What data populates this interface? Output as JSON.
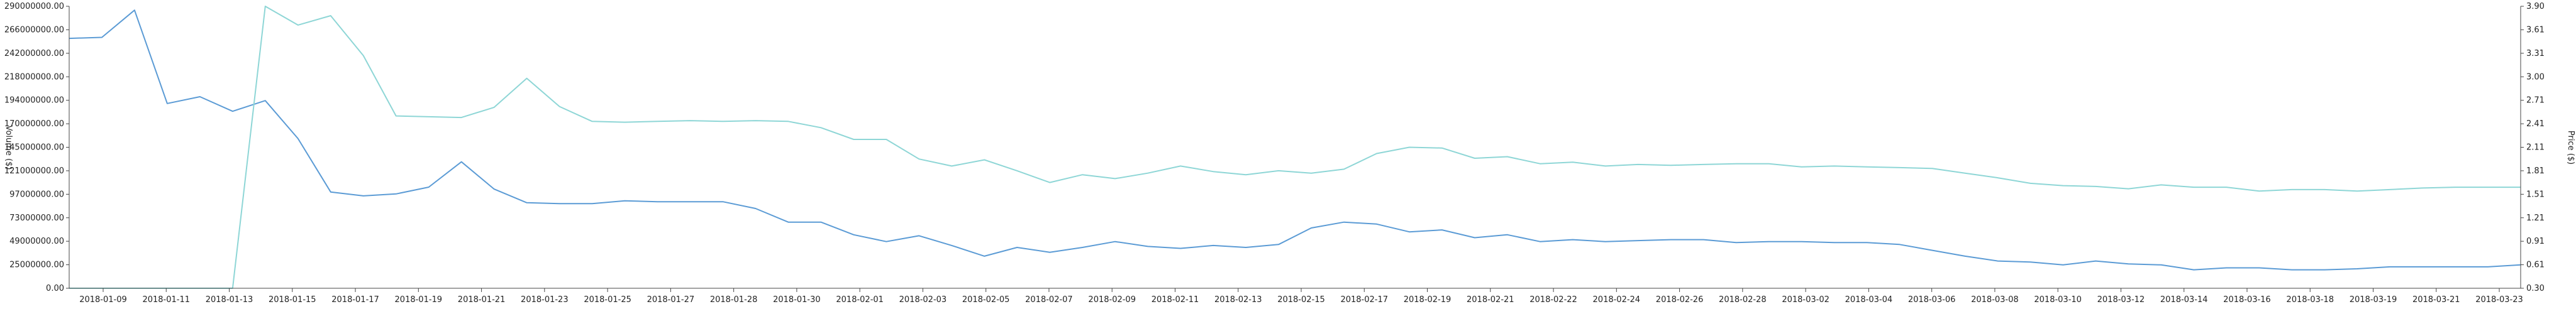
{
  "chart_data": {
    "type": "line",
    "x_ticks": [
      "2018-01-09",
      "2018-01-11",
      "2018-01-13",
      "2018-01-15",
      "2018-01-17",
      "2018-01-19",
      "2018-01-21",
      "2018-01-23",
      "2018-01-25",
      "2018-01-27",
      "2018-01-28",
      "2018-01-30",
      "2018-02-01",
      "2018-02-03",
      "2018-02-05",
      "2018-02-07",
      "2018-02-09",
      "2018-02-11",
      "2018-02-13",
      "2018-02-15",
      "2018-02-17",
      "2018-02-19",
      "2018-02-21",
      "2018-02-22",
      "2018-02-24",
      "2018-02-26",
      "2018-02-28",
      "2018-03-02",
      "2018-03-04",
      "2018-03-06",
      "2018-03-08",
      "2018-03-10",
      "2018-03-12",
      "2018-03-14",
      "2018-03-16",
      "2018-03-18",
      "2018-03-19",
      "2018-03-21",
      "2018-03-23"
    ],
    "y_left": {
      "label": "Volume ($)",
      "ticks": [
        "290000000.00",
        "266000000.00",
        "242000000.00",
        "218000000.00",
        "194000000.00",
        "170000000.00",
        "145000000.00",
        "121000000.00",
        "97000000.00",
        "73000000.00",
        "49000000.00",
        "25000000.00",
        "0.00"
      ],
      "range": [
        0,
        290000000
      ]
    },
    "y_right": {
      "label": "Price ($)",
      "ticks": [
        "3.90",
        "3.61",
        "3.31",
        "3.00",
        "2.71",
        "2.41",
        "2.11",
        "1.81",
        "1.51",
        "1.21",
        "0.91",
        "0.61",
        "0.30"
      ],
      "range": [
        0.3,
        3.9
      ]
    },
    "series": [
      {
        "axis": "left",
        "color": "#5b9bd5",
        "values": [
          257000000,
          258000000,
          286000000,
          190000000,
          197000000,
          182000000,
          193000000,
          154000000,
          99000000,
          95000000,
          97000000,
          104000000,
          130000000,
          102000000,
          88000000,
          87000000,
          87000000,
          90000000,
          89000000,
          89000000,
          89000000,
          82000000,
          68000000,
          68000000,
          55000000,
          48000000,
          54000000,
          44000000,
          33000000,
          42000000,
          37000000,
          42000000,
          48000000,
          43000000,
          41000000,
          44000000,
          42000000,
          45000000,
          62000000,
          68000000,
          66000000,
          58000000,
          60000000,
          52000000,
          55000000,
          48000000,
          50000000,
          48000000,
          49000000,
          50000000,
          50000000,
          47000000,
          48000000,
          48000000,
          47000000,
          47000000,
          45000000,
          39000000,
          33000000,
          28000000,
          27000000,
          24000000,
          28000000,
          25000000,
          24000000,
          19000000,
          21000000,
          21000000,
          19000000,
          19000000,
          20000000,
          22000000,
          22000000,
          22000000,
          22000000,
          24000000
        ]
      },
      {
        "axis": "right",
        "color": "#8ed6d6",
        "values": [
          0.3,
          0.3,
          0.3,
          0.3,
          0.3,
          0.3,
          3.9,
          3.66,
          3.78,
          3.27,
          2.5,
          2.49,
          2.48,
          2.61,
          2.98,
          2.62,
          2.43,
          2.42,
          2.43,
          2.44,
          2.43,
          2.44,
          2.43,
          2.35,
          2.2,
          2.2,
          1.95,
          1.86,
          1.94,
          1.8,
          1.65,
          1.75,
          1.7,
          1.77,
          1.86,
          1.79,
          1.75,
          1.8,
          1.77,
          1.82,
          2.02,
          2.1,
          2.09,
          1.96,
          1.98,
          1.89,
          1.91,
          1.86,
          1.88,
          1.87,
          1.88,
          1.89,
          1.89,
          1.85,
          1.86,
          1.85,
          1.84,
          1.83,
          1.77,
          1.71,
          1.64,
          1.61,
          1.6,
          1.57,
          1.62,
          1.59,
          1.59,
          1.54,
          1.56,
          1.56,
          1.54,
          1.56,
          1.58,
          1.59,
          1.59,
          1.59
        ]
      }
    ]
  }
}
